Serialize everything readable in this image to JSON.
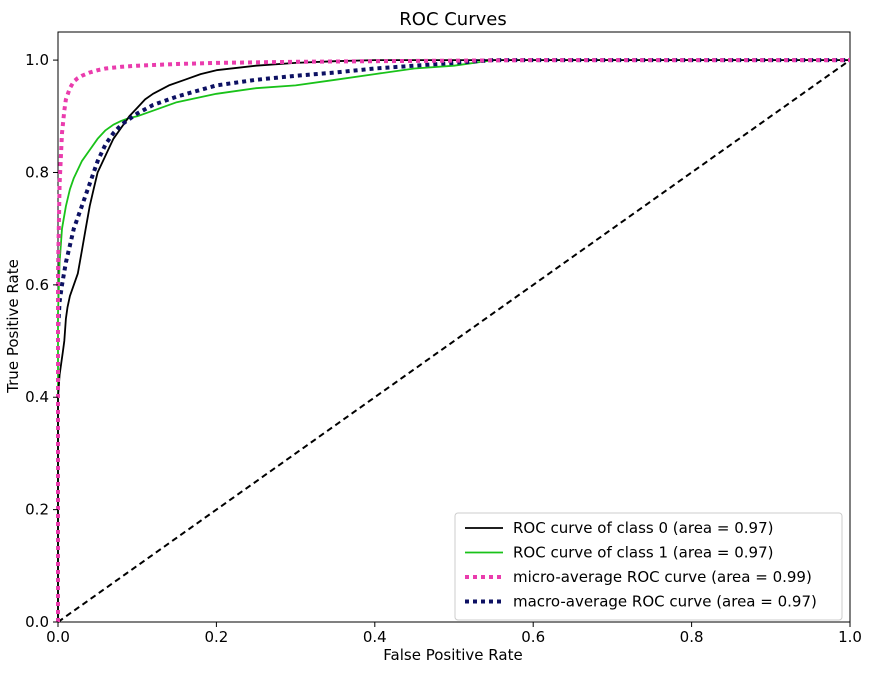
{
  "chart_data": {
    "type": "line",
    "title": "ROC Curves",
    "xlabel": "False Positive Rate",
    "ylabel": "True Positive Rate",
    "xlim": [
      0.0,
      1.0
    ],
    "ylim": [
      0.0,
      1.05
    ],
    "xticks": [
      "0.0",
      "0.2",
      "0.4",
      "0.6",
      "0.8",
      "1.0"
    ],
    "yticks": [
      "0.0",
      "0.2",
      "0.4",
      "0.6",
      "0.8",
      "1.0"
    ],
    "grid": false,
    "legend_position": "lower-right",
    "series": [
      {
        "name": "ROC curve of class 0 (area = 0.97)",
        "color": "#000000",
        "style": "solid",
        "x": [
          0.0,
          0.0,
          0.002,
          0.004,
          0.006,
          0.008,
          0.01,
          0.012,
          0.015,
          0.02,
          0.025,
          0.03,
          0.035,
          0.04,
          0.045,
          0.05,
          0.06,
          0.07,
          0.08,
          0.09,
          0.1,
          0.11,
          0.12,
          0.14,
          0.16,
          0.18,
          0.2,
          0.25,
          0.3,
          0.35,
          0.4,
          0.5,
          0.6,
          0.8,
          1.0
        ],
        "y": [
          0.0,
          0.4,
          0.44,
          0.46,
          0.48,
          0.5,
          0.54,
          0.56,
          0.58,
          0.6,
          0.62,
          0.66,
          0.7,
          0.74,
          0.77,
          0.8,
          0.83,
          0.86,
          0.88,
          0.9,
          0.915,
          0.93,
          0.94,
          0.955,
          0.965,
          0.975,
          0.982,
          0.99,
          0.995,
          0.998,
          1.0,
          1.0,
          1.0,
          1.0,
          1.0
        ]
      },
      {
        "name": "ROC curve of class 1 (area = 0.97)",
        "color": "#19c219",
        "style": "solid",
        "x": [
          0.0,
          0.0,
          0.002,
          0.005,
          0.01,
          0.015,
          0.02,
          0.03,
          0.04,
          0.05,
          0.06,
          0.07,
          0.08,
          0.09,
          0.1,
          0.12,
          0.15,
          0.2,
          0.25,
          0.3,
          0.35,
          0.4,
          0.45,
          0.5,
          0.55,
          0.6,
          0.8,
          1.0
        ],
        "y": [
          0.0,
          0.55,
          0.64,
          0.7,
          0.74,
          0.77,
          0.79,
          0.82,
          0.84,
          0.86,
          0.875,
          0.885,
          0.892,
          0.897,
          0.9,
          0.91,
          0.925,
          0.94,
          0.95,
          0.955,
          0.965,
          0.975,
          0.985,
          0.99,
          1.0,
          1.0,
          1.0,
          1.0
        ]
      },
      {
        "name": "micro-average ROC curve (area = 0.99)",
        "color": "#ea3cad",
        "style": "dotted",
        "x": [
          0.0,
          0.0,
          0.002,
          0.005,
          0.008,
          0.01,
          0.015,
          0.02,
          0.025,
          0.03,
          0.04,
          0.05,
          0.06,
          0.08,
          0.1,
          0.15,
          0.2,
          0.3,
          0.4,
          0.6,
          0.8,
          1.0
        ],
        "y": [
          0.0,
          0.62,
          0.78,
          0.87,
          0.91,
          0.93,
          0.95,
          0.962,
          0.968,
          0.972,
          0.978,
          0.982,
          0.985,
          0.988,
          0.99,
          0.993,
          0.995,
          0.997,
          0.998,
          1.0,
          1.0,
          1.0
        ]
      },
      {
        "name": "macro-average ROC curve (area = 0.97)",
        "color": "#0d1163",
        "style": "dotted",
        "x": [
          0.0,
          0.0,
          0.002,
          0.005,
          0.01,
          0.015,
          0.02,
          0.03,
          0.04,
          0.05,
          0.06,
          0.07,
          0.08,
          0.09,
          0.1,
          0.12,
          0.15,
          0.2,
          0.25,
          0.3,
          0.35,
          0.4,
          0.45,
          0.5,
          0.55,
          0.6,
          0.8,
          1.0
        ],
        "y": [
          0.0,
          0.52,
          0.57,
          0.6,
          0.64,
          0.67,
          0.7,
          0.74,
          0.78,
          0.82,
          0.85,
          0.87,
          0.885,
          0.895,
          0.905,
          0.92,
          0.935,
          0.955,
          0.965,
          0.972,
          0.978,
          0.985,
          0.99,
          0.995,
          1.0,
          1.0,
          1.0,
          1.0
        ]
      },
      {
        "name": "",
        "color": "#000000",
        "style": "dashed",
        "x": [
          0.0,
          1.0
        ],
        "y": [
          0.0,
          1.0
        ]
      }
    ]
  }
}
